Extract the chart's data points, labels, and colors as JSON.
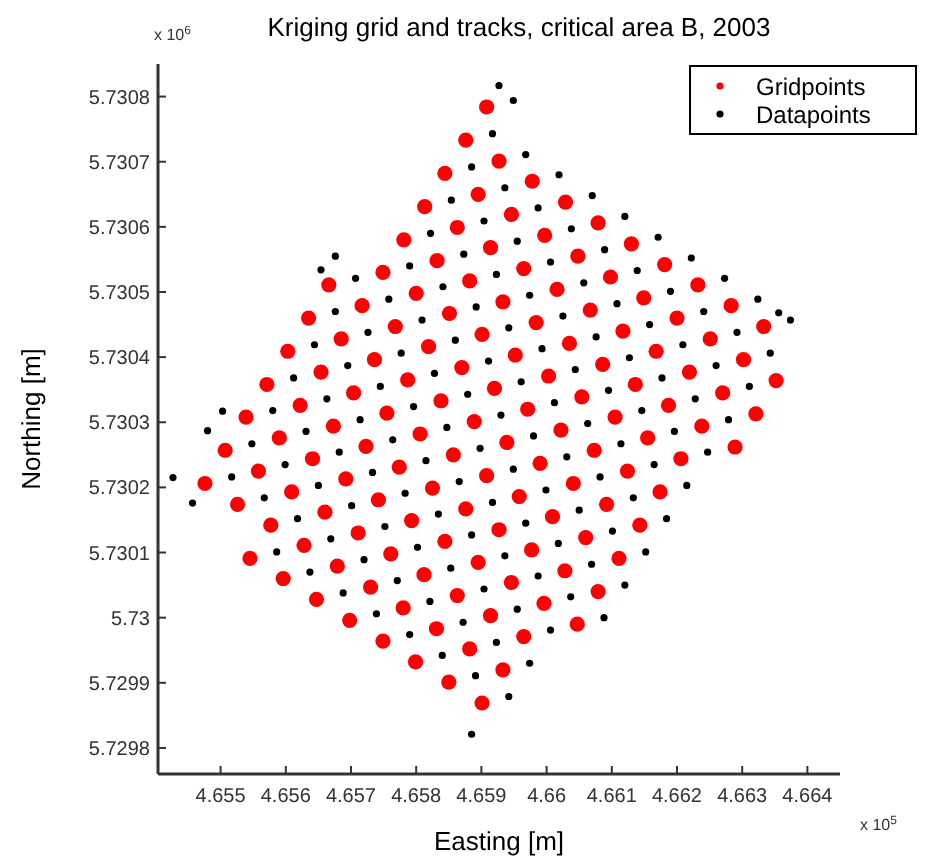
{
  "chart_data": {
    "type": "scatter",
    "title": "Kriging grid and tracks, critical area B, 2003",
    "xlabel": "Easting [m]",
    "ylabel": "Northing [m]",
    "annotations": [
      "x 10$^{6}$",
      "x 10$^{5}$"
    ],
    "xlim": [
      4.65404,
      4.6645
    ],
    "ylim": [
      5.72976,
      5.73085
    ],
    "xticks": [
      4.655,
      4.656,
      4.657,
      4.658,
      4.659,
      4.66,
      4.661,
      4.662,
      4.663,
      4.664
    ],
    "yticks": [
      5.7298,
      5.7299,
      5.73,
      5.7301,
      5.7302,
      5.7303,
      5.7304,
      5.7305,
      5.7306,
      5.7307,
      5.7308
    ],
    "grid": false,
    "legend": "top right",
    "marker": "circle",
    "series": [
      {
        "name": "Gridpoints",
        "color": "#ff0000",
        "x": [
          4.65476,
          4.65507,
          4.65539,
          4.65571,
          4.65603,
          4.65635,
          4.65666,
          4.65526,
          4.65558,
          4.6559,
          4.65622,
          4.65654,
          4.65685,
          4.65717,
          4.65749,
          4.65781,
          4.65813,
          4.65844,
          4.65876,
          4.65908,
          4.65545,
          4.65577,
          4.65609,
          4.65641,
          4.65673,
          4.65704,
          4.65736,
          4.65768,
          4.658,
          4.65832,
          4.65863,
          4.65895,
          4.65927,
          4.65596,
          4.65628,
          4.6566,
          4.65692,
          4.65723,
          4.65755,
          4.65787,
          4.65819,
          4.65851,
          4.65882,
          4.65914,
          4.65946,
          4.65978,
          4.65647,
          4.65679,
          4.65711,
          4.65742,
          4.65774,
          4.65806,
          4.65838,
          4.6587,
          4.65901,
          4.65933,
          4.65965,
          4.65997,
          4.66029,
          4.65698,
          4.6573,
          4.65761,
          4.65793,
          4.65825,
          4.65857,
          4.65889,
          4.6592,
          4.65952,
          4.65984,
          4.66016,
          4.66048,
          4.66079,
          4.65749,
          4.6578,
          4.65812,
          4.65844,
          4.65876,
          4.65908,
          4.65939,
          4.65971,
          4.66003,
          4.66035,
          4.66067,
          4.66098,
          4.6613,
          4.65799,
          4.65831,
          4.65863,
          4.65895,
          4.65927,
          4.65958,
          4.6599,
          4.66022,
          4.66054,
          4.66086,
          4.66117,
          4.66149,
          4.66181,
          4.6585,
          4.65882,
          4.65914,
          4.65946,
          4.65977,
          4.66009,
          4.66041,
          4.66073,
          4.66105,
          4.66136,
          4.66168,
          4.662,
          4.66232,
          4.65901,
          4.65933,
          4.65965,
          4.65996,
          4.66028,
          4.6606,
          4.66092,
          4.66124,
          4.66155,
          4.66187,
          4.66219,
          4.66251,
          4.66283,
          4.66047,
          4.66079,
          4.66111,
          4.66143,
          4.66174,
          4.66206,
          4.66238,
          4.6627,
          4.66302,
          4.66333,
          4.66289,
          4.66321,
          4.66352
        ],
        "values": [
          5.730206,
          5.730257,
          5.730308,
          5.730358,
          5.730409,
          5.73046,
          5.730511,
          5.730174,
          5.730225,
          5.730276,
          5.730326,
          5.730377,
          5.730428,
          5.730479,
          5.73053,
          5.73058,
          5.730631,
          5.730682,
          5.730733,
          5.730784,
          5.730091,
          5.730142,
          5.730193,
          5.730244,
          5.730294,
          5.730345,
          5.730396,
          5.730447,
          5.730498,
          5.730548,
          5.730599,
          5.73065,
          5.730701,
          5.73006,
          5.730111,
          5.730162,
          5.730213,
          5.730263,
          5.730314,
          5.730365,
          5.730416,
          5.730467,
          5.730517,
          5.730568,
          5.730619,
          5.73067,
          5.730028,
          5.730079,
          5.73013,
          5.730181,
          5.730231,
          5.730282,
          5.730333,
          5.730384,
          5.730435,
          5.730485,
          5.730536,
          5.730587,
          5.730638,
          5.729996,
          5.730047,
          5.730098,
          5.730149,
          5.730199,
          5.73025,
          5.730301,
          5.730352,
          5.730403,
          5.730453,
          5.730504,
          5.730555,
          5.730606,
          5.729964,
          5.730015,
          5.730066,
          5.730117,
          5.730167,
          5.730218,
          5.730269,
          5.73032,
          5.730371,
          5.730421,
          5.730472,
          5.730523,
          5.730574,
          5.729932,
          5.729983,
          5.730034,
          5.730085,
          5.730135,
          5.730186,
          5.730237,
          5.730288,
          5.730339,
          5.730389,
          5.73044,
          5.730491,
          5.730542,
          5.729901,
          5.729952,
          5.730003,
          5.730054,
          5.730104,
          5.730155,
          5.730206,
          5.730257,
          5.730308,
          5.730358,
          5.730409,
          5.73046,
          5.730511,
          5.729869,
          5.72992,
          5.729971,
          5.730022,
          5.730072,
          5.730123,
          5.730174,
          5.730225,
          5.730276,
          5.730326,
          5.730377,
          5.730428,
          5.730479,
          5.72999,
          5.73004,
          5.730091,
          5.730142,
          5.730193,
          5.730244,
          5.730294,
          5.730345,
          5.730396,
          5.730447,
          5.730262,
          5.730313,
          5.730364
        ]
      },
      {
        "name": "Datapoints",
        "color": "#000000",
        "x": [
          4.65427,
          4.65457,
          4.6548,
          4.65503,
          4.65676,
          4.65654,
          4.65885,
          4.65927,
          4.66356,
          4.65517,
          4.65548,
          4.6558,
          4.65612,
          4.65644,
          4.65676,
          4.65707,
          4.65567,
          4.65599,
          4.65631,
          4.65663,
          4.65695,
          4.65726,
          4.65758,
          4.6579,
          4.65822,
          4.65854,
          4.65885,
          4.65917,
          4.65949,
          4.65586,
          4.65618,
          4.6565,
          4.65682,
          4.65714,
          4.65745,
          4.65777,
          4.65809,
          4.65841,
          4.65873,
          4.65904,
          4.65936,
          4.65968,
          4.65637,
          4.65669,
          4.65701,
          4.65733,
          4.65764,
          4.65796,
          4.65828,
          4.6586,
          4.65892,
          4.65923,
          4.65955,
          4.65987,
          4.66019,
          4.65688,
          4.6572,
          4.65752,
          4.65783,
          4.65815,
          4.65847,
          4.65879,
          4.65911,
          4.65942,
          4.65974,
          4.66006,
          4.66038,
          4.6607,
          4.65739,
          4.65771,
          4.65802,
          4.65834,
          4.65866,
          4.65898,
          4.6593,
          4.65961,
          4.65993,
          4.66025,
          4.66057,
          4.66089,
          4.6612,
          4.6579,
          4.65821,
          4.65853,
          4.65885,
          4.65917,
          4.65949,
          4.6598,
          4.66012,
          4.66044,
          4.66076,
          4.66108,
          4.66139,
          4.66171,
          4.6584,
          4.65872,
          4.65904,
          4.65936,
          4.65968,
          4.65999,
          4.66031,
          4.66063,
          4.66095,
          4.66127,
          4.66158,
          4.6619,
          4.66222,
          4.65891,
          4.65923,
          4.65955,
          4.65987,
          4.66018,
          4.6605,
          4.66082,
          4.66114,
          4.66146,
          4.66177,
          4.66209,
          4.66241,
          4.66273,
          4.65942,
          4.65974,
          4.66006,
          4.66037,
          4.66069,
          4.66101,
          4.66133,
          4.66165,
          4.66196,
          4.66228,
          4.6626,
          4.66292,
          4.66324,
          4.66088,
          4.6612,
          4.66152,
          4.66184,
          4.66215,
          4.66247,
          4.66279,
          4.66311,
          4.66343,
          4.66374
        ],
        "values": [
          5.730215,
          5.730176,
          5.730287,
          5.730317,
          5.730555,
          5.730534,
          5.729821,
          5.730817,
          5.730468,
          5.730216,
          5.730267,
          5.730318,
          5.730368,
          5.730419,
          5.73047,
          5.730521,
          5.730184,
          5.730235,
          5.730286,
          5.730336,
          5.730387,
          5.730438,
          5.730489,
          5.73054,
          5.73059,
          5.730641,
          5.730692,
          5.730743,
          5.730794,
          5.730101,
          5.730152,
          5.730203,
          5.730254,
          5.730304,
          5.730355,
          5.730406,
          5.730457,
          5.730508,
          5.730558,
          5.730609,
          5.73066,
          5.730711,
          5.73007,
          5.730121,
          5.730172,
          5.730223,
          5.730273,
          5.730324,
          5.730375,
          5.730426,
          5.730477,
          5.730527,
          5.730578,
          5.730629,
          5.73068,
          5.730038,
          5.730089,
          5.73014,
          5.730191,
          5.730241,
          5.730292,
          5.730343,
          5.730394,
          5.730445,
          5.730495,
          5.730546,
          5.730597,
          5.730648,
          5.730006,
          5.730057,
          5.730108,
          5.730159,
          5.730209,
          5.73026,
          5.730311,
          5.730362,
          5.730413,
          5.730463,
          5.730514,
          5.730565,
          5.730616,
          5.729974,
          5.730025,
          5.730076,
          5.730127,
          5.730177,
          5.730228,
          5.730279,
          5.73033,
          5.730381,
          5.730431,
          5.730482,
          5.730533,
          5.730584,
          5.729942,
          5.729993,
          5.730044,
          5.730095,
          5.730145,
          5.730196,
          5.730247,
          5.730298,
          5.730349,
          5.730399,
          5.73045,
          5.730501,
          5.730552,
          5.729911,
          5.729962,
          5.730013,
          5.730064,
          5.730114,
          5.730165,
          5.730216,
          5.730267,
          5.730318,
          5.730368,
          5.730419,
          5.73047,
          5.730521,
          5.729879,
          5.72993,
          5.729981,
          5.730032,
          5.730082,
          5.730133,
          5.730184,
          5.730235,
          5.730286,
          5.730336,
          5.730387,
          5.730438,
          5.730489,
          5.73,
          5.73005,
          5.730101,
          5.730152,
          5.730203,
          5.730254,
          5.730304,
          5.730355,
          5.730406,
          5.730457
        ]
      }
    ]
  }
}
